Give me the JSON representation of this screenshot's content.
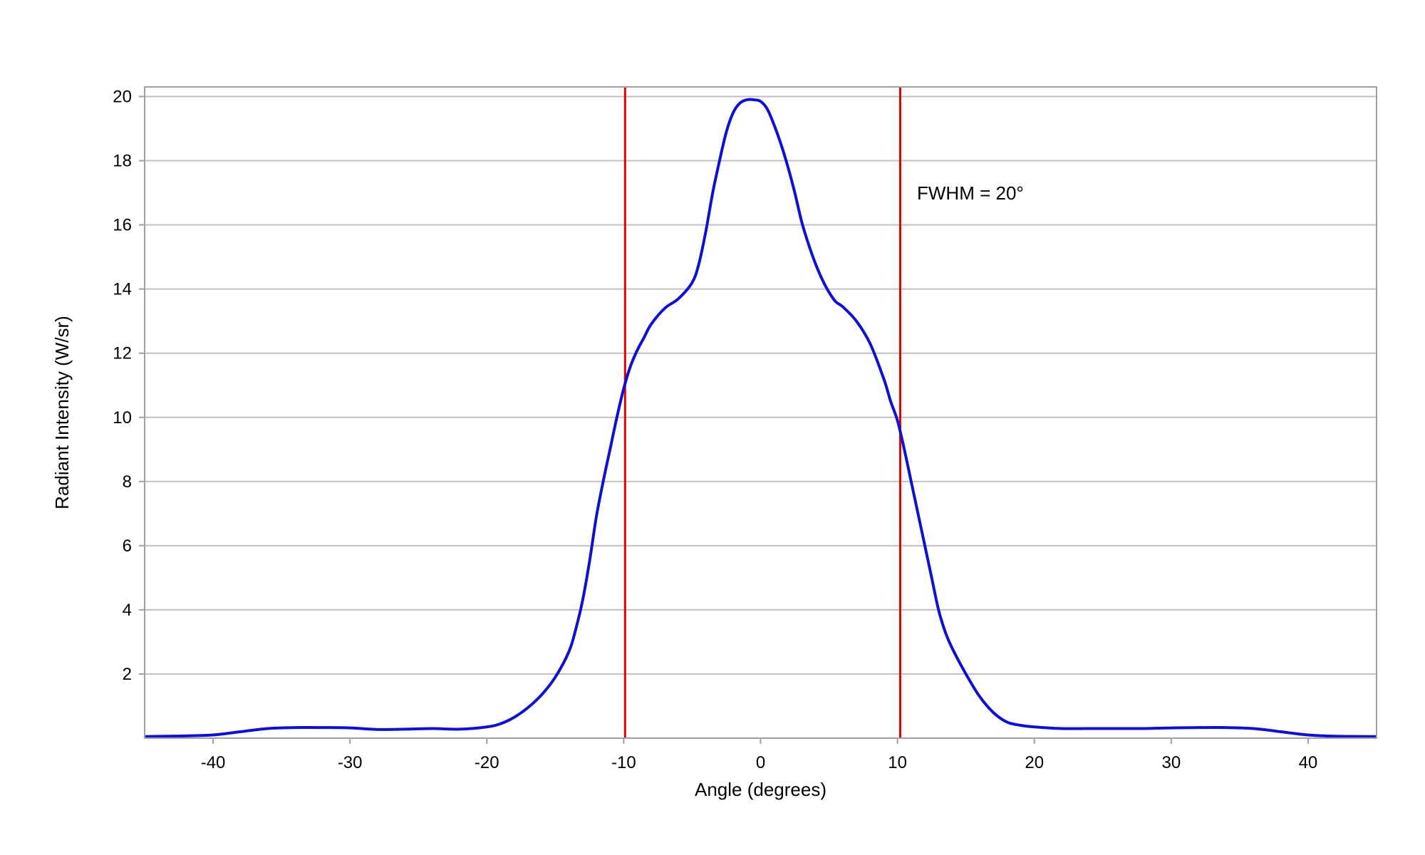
{
  "chart_data": {
    "type": "line",
    "title": "",
    "xlabel": "Angle (degrees)",
    "ylabel": "Radiant Intensity (W/sr)",
    "xlim": [
      -45,
      45
    ],
    "ylim": [
      0,
      20.3
    ],
    "xticks": [
      -40,
      -30,
      -20,
      -10,
      0,
      10,
      20,
      30,
      40
    ],
    "yticks": [
      2,
      4,
      6,
      8,
      10,
      12,
      14,
      16,
      18,
      20
    ],
    "grid": true,
    "legend": "none",
    "colors": {
      "series": "#1010d0",
      "markers": "#e00000",
      "grid": "#c0c0c0",
      "frame": "#a0a0a0"
    },
    "series": [
      {
        "x": [
          -45,
          -42,
          -40,
          -38,
          -36,
          -34,
          -32,
          -30,
          -28,
          -26,
          -24,
          -22,
          -20,
          -19,
          -18,
          -17,
          -16,
          -15,
          -14,
          -13.5,
          -13,
          -12.5,
          -12,
          -11.5,
          -11,
          -10.5,
          -10,
          -9.5,
          -9,
          -8.5,
          -8,
          -7,
          -6,
          -5,
          -4.5,
          -4,
          -3.5,
          -3,
          -2.5,
          -2,
          -1.5,
          -1,
          -0.5,
          0,
          0.5,
          1,
          1.5,
          2,
          2.5,
          3,
          3.5,
          4,
          4.5,
          5,
          5.5,
          6,
          7,
          8,
          9,
          9.5,
          10,
          10.5,
          11,
          11.5,
          12,
          12.5,
          13,
          13.5,
          14,
          15,
          16,
          17,
          18,
          19,
          20,
          22,
          24,
          26,
          28,
          30,
          32,
          34,
          36,
          38,
          40,
          42,
          45
        ],
        "y": [
          0.05,
          0.07,
          0.1,
          0.2,
          0.3,
          0.33,
          0.33,
          0.32,
          0.27,
          0.28,
          0.3,
          0.28,
          0.35,
          0.45,
          0.65,
          0.95,
          1.35,
          1.9,
          2.7,
          3.4,
          4.3,
          5.5,
          6.9,
          8.0,
          9.0,
          10.0,
          10.9,
          11.6,
          12.1,
          12.5,
          12.9,
          13.4,
          13.7,
          14.2,
          14.8,
          15.8,
          17.0,
          18.0,
          18.9,
          19.5,
          19.8,
          19.9,
          19.9,
          19.85,
          19.6,
          19.1,
          18.5,
          17.8,
          17.0,
          16.1,
          15.4,
          14.8,
          14.3,
          13.9,
          13.6,
          13.45,
          13.0,
          12.3,
          11.2,
          10.5,
          9.9,
          9.0,
          8.0,
          7.0,
          6.0,
          5.0,
          4.0,
          3.3,
          2.8,
          2.0,
          1.3,
          0.8,
          0.5,
          0.4,
          0.35,
          0.3,
          0.3,
          0.3,
          0.3,
          0.32,
          0.33,
          0.33,
          0.3,
          0.2,
          0.1,
          0.06,
          0.05
        ]
      }
    ],
    "markers": [
      {
        "type": "vline",
        "x": -9.9
      },
      {
        "type": "vline",
        "x": 10.2
      }
    ],
    "annotations": [
      {
        "text": "FWHM = 20°"
      }
    ]
  }
}
